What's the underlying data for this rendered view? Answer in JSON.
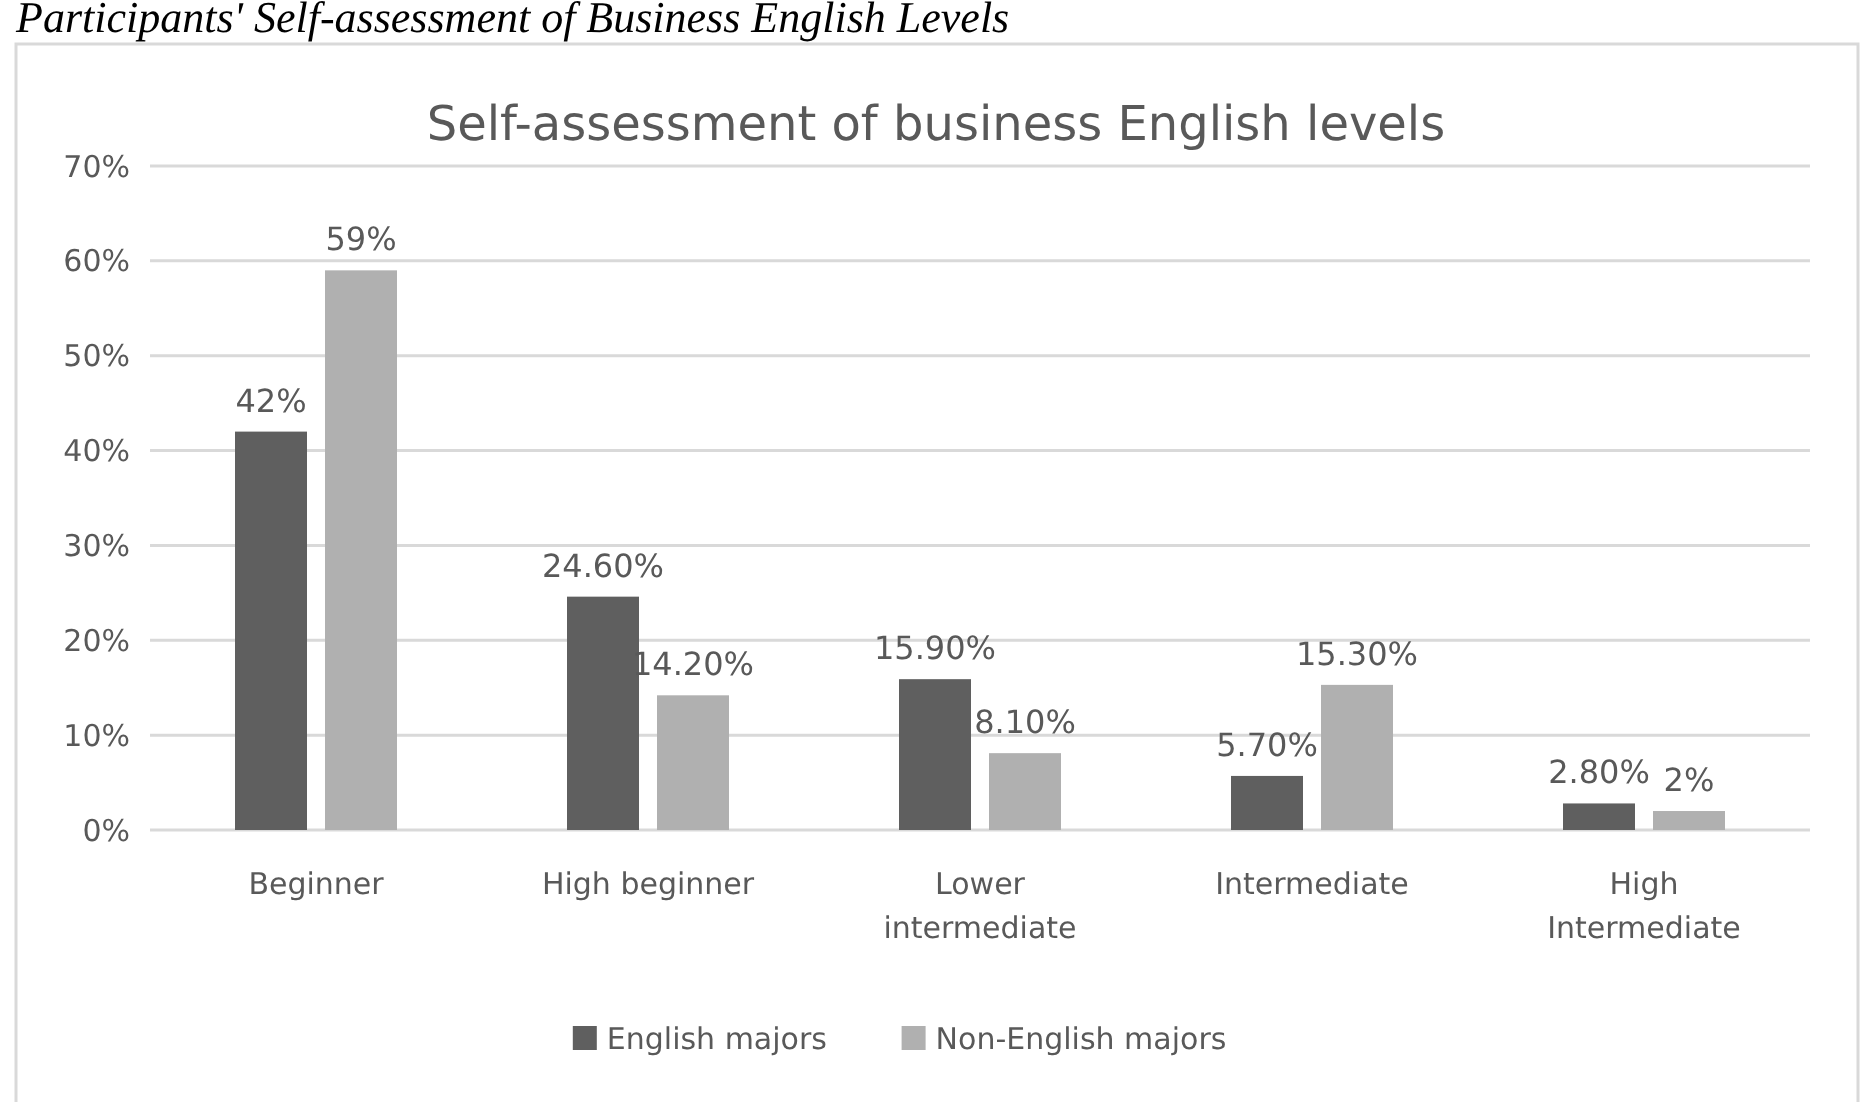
{
  "chart_data": {
    "type": "bar",
    "title": "Self-assessment of business English levels",
    "annotations": [
      "Participants' Self-assessment of Business English Levels"
    ],
    "categories": [
      "Beginner",
      "High beginner",
      "Lower intermediate",
      "Intermediate",
      "High Intermediate"
    ],
    "series": [
      {
        "name": "English majors",
        "color": "#5f5f5f",
        "values": [
          42,
          24.6,
          15.9,
          5.7,
          2.8
        ],
        "value_labels": [
          "42%",
          "24.60%",
          "15.90%",
          "5.70%",
          "2.80%"
        ]
      },
      {
        "name": "Non-English majors",
        "color": "#b0b0b0",
        "values": [
          59,
          14.2,
          8.1,
          15.3,
          2
        ],
        "value_labels": [
          "59%",
          "14.20%",
          "8.10%",
          "15.30%",
          "2%"
        ]
      }
    ],
    "ylim": [
      0,
      70
    ],
    "yticks": [
      {
        "value": 0,
        "label": "0%"
      },
      {
        "value": 10,
        "label": "10%"
      },
      {
        "value": 20,
        "label": "20%"
      },
      {
        "value": 30,
        "label": "30%"
      },
      {
        "value": 40,
        "label": "40%"
      },
      {
        "value": 50,
        "label": "50%"
      },
      {
        "value": 60,
        "label": "60%"
      },
      {
        "value": 70,
        "label": "70%"
      }
    ],
    "grid": "y",
    "legend": "bottom"
  }
}
